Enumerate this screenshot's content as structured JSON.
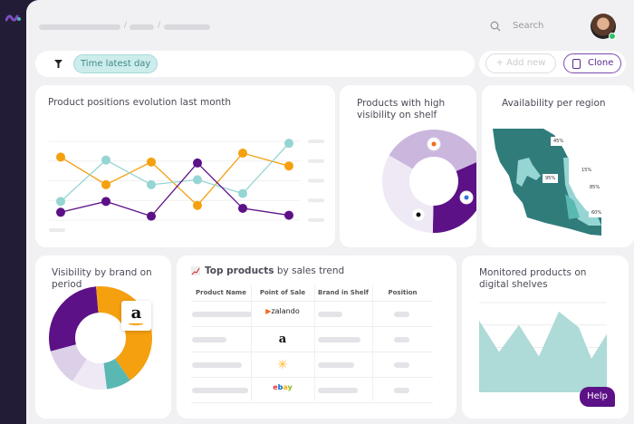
{
  "header": {
    "search_placeholder": "Search",
    "breadcrumb": [
      "",
      "",
      ""
    ]
  },
  "filters": {
    "chip": "Time latest day",
    "add_new": "+ Add new",
    "clone": "Clone"
  },
  "colors": {
    "purple": "#5c1187",
    "orange": "#f5a00f",
    "teal": "#95d5d3",
    "lilac": "#cbb7de",
    "pale": "#efe9f5",
    "map_dark": "#2f7c7b",
    "sidebar": "#231c36"
  },
  "cards": {
    "positions": {
      "title": "Product positions evolution last month"
    },
    "visibility": {
      "title": "Products with high visibility on shelf"
    },
    "availability": {
      "title": "Availability per region",
      "labels": [
        "45%",
        "15%",
        "95%",
        "85%",
        "60%"
      ]
    },
    "brand": {
      "title": "Visibility by brand on period"
    },
    "top": {
      "title_bold": "Top products",
      "title_rest": " by sales trend",
      "columns": [
        "Product Name",
        "Point of Sale",
        "Brand in Shelf",
        "Position"
      ],
      "rows": [
        {
          "pos": "zalando"
        },
        {
          "pos": "amazon"
        },
        {
          "pos": "walmart"
        },
        {
          "pos": "ebay"
        }
      ]
    },
    "monitored": {
      "title": "Monitored products on digital shelves"
    }
  },
  "help": "Help",
  "chart_data": [
    {
      "type": "line",
      "series": [
        {
          "color": "#f5a00f",
          "values": [
            3.2,
            1.8,
            2.95,
            0.75,
            3.4,
            2.75
          ]
        },
        {
          "color": "#95d5d3",
          "values": [
            0.95,
            3.05,
            1.8,
            2.05,
            1.35,
            3.9
          ]
        },
        {
          "color": "#5c1187",
          "values": [
            0.4,
            0.95,
            0.2,
            2.9,
            0.6,
            0.25
          ]
        }
      ],
      "ylim": [
        0,
        4
      ],
      "grid": true
    },
    {
      "type": "pie",
      "slices": [
        {
          "color": "#cbb7de",
          "value": 35,
          "brand": "zalando"
        },
        {
          "color": "#5c1187",
          "value": 32,
          "brand": "ebay"
        },
        {
          "color": "#efe9f5",
          "value": 33,
          "brand": "amazon"
        }
      ]
    },
    {
      "type": "pie",
      "slices": [
        {
          "color": "#5c1187",
          "value": 100
        },
        {
          "color": "#f5a00f",
          "value": 150,
          "brand": "amazon"
        },
        {
          "color": "#5ab8b3",
          "value": 28
        },
        {
          "color": "#efe9f5",
          "value": 40
        },
        {
          "color": "#dccfe8",
          "value": 42
        }
      ]
    },
    {
      "type": "area",
      "color": "#aedad7",
      "values": [
        3.2,
        1.8,
        3.0,
        1.6,
        3.6,
        2.9,
        1.5,
        2.6
      ],
      "ylim": [
        0,
        4
      ],
      "grid": true
    }
  ]
}
